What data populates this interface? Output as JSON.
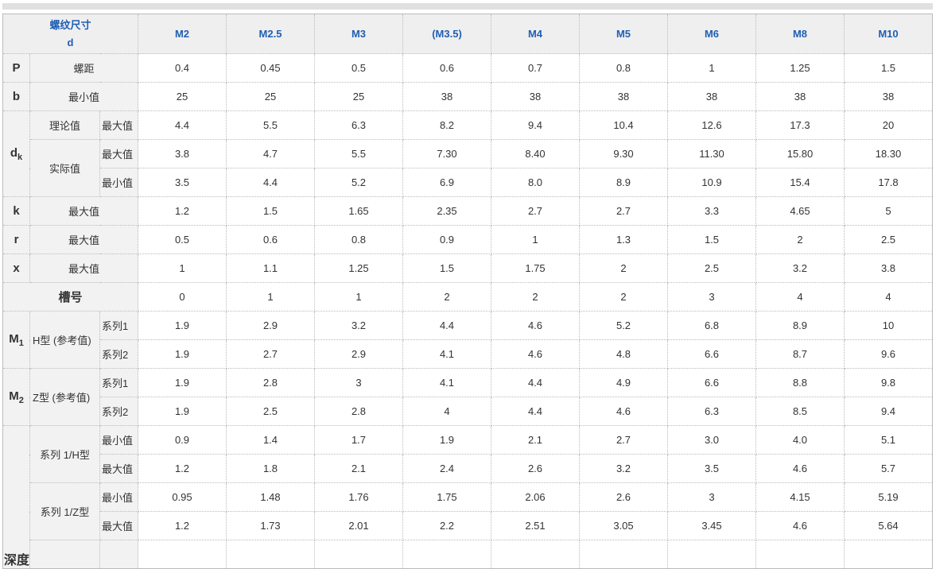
{
  "header": {
    "label_line1": "螺纹尺寸",
    "label_line2": "d",
    "sizes": [
      "M2",
      "M2.5",
      "M3",
      "(M3.5)",
      "M4",
      "M5",
      "M6",
      "M8",
      "M10"
    ]
  },
  "rows": {
    "P": {
      "sym": "P",
      "label": "螺距",
      "values": [
        "0.4",
        "0.45",
        "0.5",
        "0.6",
        "0.7",
        "0.8",
        "1",
        "1.25",
        "1.5"
      ]
    },
    "b": {
      "sym": "b",
      "label": "最小值",
      "values": [
        "25",
        "25",
        "25",
        "38",
        "38",
        "38",
        "38",
        "38",
        "38"
      ]
    },
    "dk": {
      "sym": "d",
      "sub": "k",
      "theory": "理论值",
      "actual": "实际值",
      "max": "最大值",
      "min": "最小值",
      "theory_max": [
        "4.4",
        "5.5",
        "6.3",
        "8.2",
        "9.4",
        "10.4",
        "12.6",
        "17.3",
        "20"
      ],
      "actual_max": [
        "3.8",
        "4.7",
        "5.5",
        "7.30",
        "8.40",
        "9.30",
        "11.30",
        "15.80",
        "18.30"
      ],
      "actual_min": [
        "3.5",
        "4.4",
        "5.2",
        "6.9",
        "8.0",
        "8.9",
        "10.9",
        "15.4",
        "17.8"
      ]
    },
    "k": {
      "sym": "k",
      "label": "最大值",
      "values": [
        "1.2",
        "1.5",
        "1.65",
        "2.35",
        "2.7",
        "2.7",
        "3.3",
        "4.65",
        "5"
      ]
    },
    "r": {
      "sym": "r",
      "label": "最大值",
      "values": [
        "0.5",
        "0.6",
        "0.8",
        "0.9",
        "1",
        "1.3",
        "1.5",
        "2",
        "2.5"
      ]
    },
    "x": {
      "sym": "x",
      "label": "最大值",
      "values": [
        "1",
        "1.1",
        "1.25",
        "1.5",
        "1.75",
        "2",
        "2.5",
        "3.2",
        "3.8"
      ]
    },
    "slot": {
      "label": "槽号",
      "values": [
        "0",
        "1",
        "1",
        "2",
        "2",
        "2",
        "3",
        "4",
        "4"
      ]
    },
    "M1": {
      "sym": "M",
      "sub": "1",
      "label": "H型 (参考值)",
      "s1": "系列1",
      "s2": "系列2",
      "s1_values": [
        "1.9",
        "2.9",
        "3.2",
        "4.4",
        "4.6",
        "5.2",
        "6.8",
        "8.9",
        "10"
      ],
      "s2_values": [
        "1.9",
        "2.7",
        "2.9",
        "4.1",
        "4.6",
        "4.8",
        "6.6",
        "8.7",
        "9.6"
      ]
    },
    "M2": {
      "sym": "M",
      "sub": "2",
      "label": "Z型 (参考值)",
      "s1": "系列1",
      "s2": "系列2",
      "s1_values": [
        "1.9",
        "2.8",
        "3",
        "4.1",
        "4.4",
        "4.9",
        "6.6",
        "8.8",
        "9.8"
      ],
      "s2_values": [
        "1.9",
        "2.5",
        "2.8",
        "4",
        "4.4",
        "4.6",
        "6.3",
        "8.5",
        "9.4"
      ]
    },
    "depth": {
      "label": "深度",
      "h_label": "系列 1/H型",
      "z_label": "系列 1/Z型",
      "min": "最小值",
      "max": "最大值",
      "h_min": [
        "0.9",
        "1.4",
        "1.7",
        "1.9",
        "2.1",
        "2.7",
        "3.0",
        "4.0",
        "5.1"
      ],
      "h_max": [
        "1.2",
        "1.8",
        "2.1",
        "2.4",
        "2.6",
        "3.2",
        "3.5",
        "4.6",
        "5.7"
      ],
      "z_min": [
        "0.95",
        "1.48",
        "1.76",
        "1.75",
        "2.06",
        "2.6",
        "3",
        "4.15",
        "5.19"
      ],
      "z_max": [
        "1.2",
        "1.73",
        "2.01",
        "2.2",
        "2.51",
        "3.05",
        "3.45",
        "4.6",
        "5.64"
      ]
    }
  }
}
